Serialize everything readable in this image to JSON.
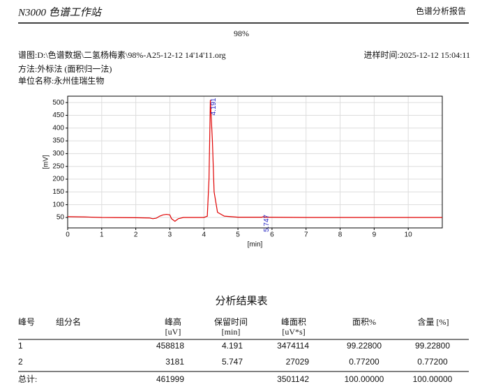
{
  "header": {
    "title": "N3000 色谱工作站",
    "report": "色谱分析报告",
    "sample": "98%"
  },
  "info": {
    "file": "谱图:D:\\色谱数据\\二氢杨梅素\\98%-A25-12-12 14'14'11.org",
    "time": "进样时间:2025-12-12 15:04:11",
    "method": "方法:外标法 (面积归一法)",
    "unit": "单位名称:永州佳瑞生物"
  },
  "chart_data": {
    "type": "line",
    "xlabel": "[min]",
    "ylabel": "[mV]",
    "x": [
      0,
      0.5,
      1,
      2,
      2.4,
      2.5,
      2.6,
      2.7,
      2.8,
      2.9,
      3.0,
      3.05,
      3.15,
      3.25,
      3.4,
      4.0,
      4.1,
      4.15,
      4.19,
      4.25,
      4.3,
      4.4,
      4.6,
      5.0,
      5.7,
      5.75,
      5.8,
      7,
      11
    ],
    "series": [
      {
        "color": "#e00000",
        "values": [
          53,
          52,
          50,
          49,
          48,
          45,
          47,
          55,
          60,
          62,
          60,
          45,
          35,
          45,
          50,
          50,
          55,
          200,
          510,
          350,
          150,
          70,
          55,
          51,
          51,
          53,
          51,
          50,
          50
        ]
      }
    ],
    "xlim": [
      0,
      11
    ],
    "ylim": [
      9,
      525
    ],
    "xticks": [
      0,
      1,
      2,
      3,
      4,
      5,
      6,
      7,
      8,
      9,
      10
    ],
    "yticks": [
      50,
      100,
      150,
      200,
      250,
      300,
      350,
      400,
      450,
      500
    ],
    "grid": true,
    "annotations": [
      {
        "text": "4.191",
        "x": 4.191,
        "y": 510
      },
      {
        "text": "5.747",
        "x": 5.747,
        "y": 53
      }
    ]
  },
  "table": {
    "title": "分析结果表",
    "headers": {
      "no": {
        "line1": "峰号"
      },
      "name": {
        "line1": "组分名"
      },
      "height": {
        "line1": "峰高",
        "line2": "[uV]"
      },
      "rt": {
        "line1": "保留时间",
        "line2": "[min]"
      },
      "area": {
        "line1": "峰面积",
        "line2": "[uV*s]"
      },
      "area_pct": {
        "line1": "面积%"
      },
      "content": {
        "line1": "含量 [%]"
      }
    },
    "rows": [
      {
        "no": "1",
        "height": "458818",
        "rt": "4.191",
        "area": "3474114",
        "area_pct": "99.22800",
        "content": "99.22800"
      },
      {
        "no": "2",
        "height": "3181",
        "rt": "5.747",
        "area": "27029",
        "area_pct": "0.77200",
        "content": "0.77200"
      }
    ],
    "total": {
      "no": "总计:",
      "height": "461999",
      "area": "3501142",
      "area_pct": "100.00000",
      "content": "100.00000"
    }
  }
}
